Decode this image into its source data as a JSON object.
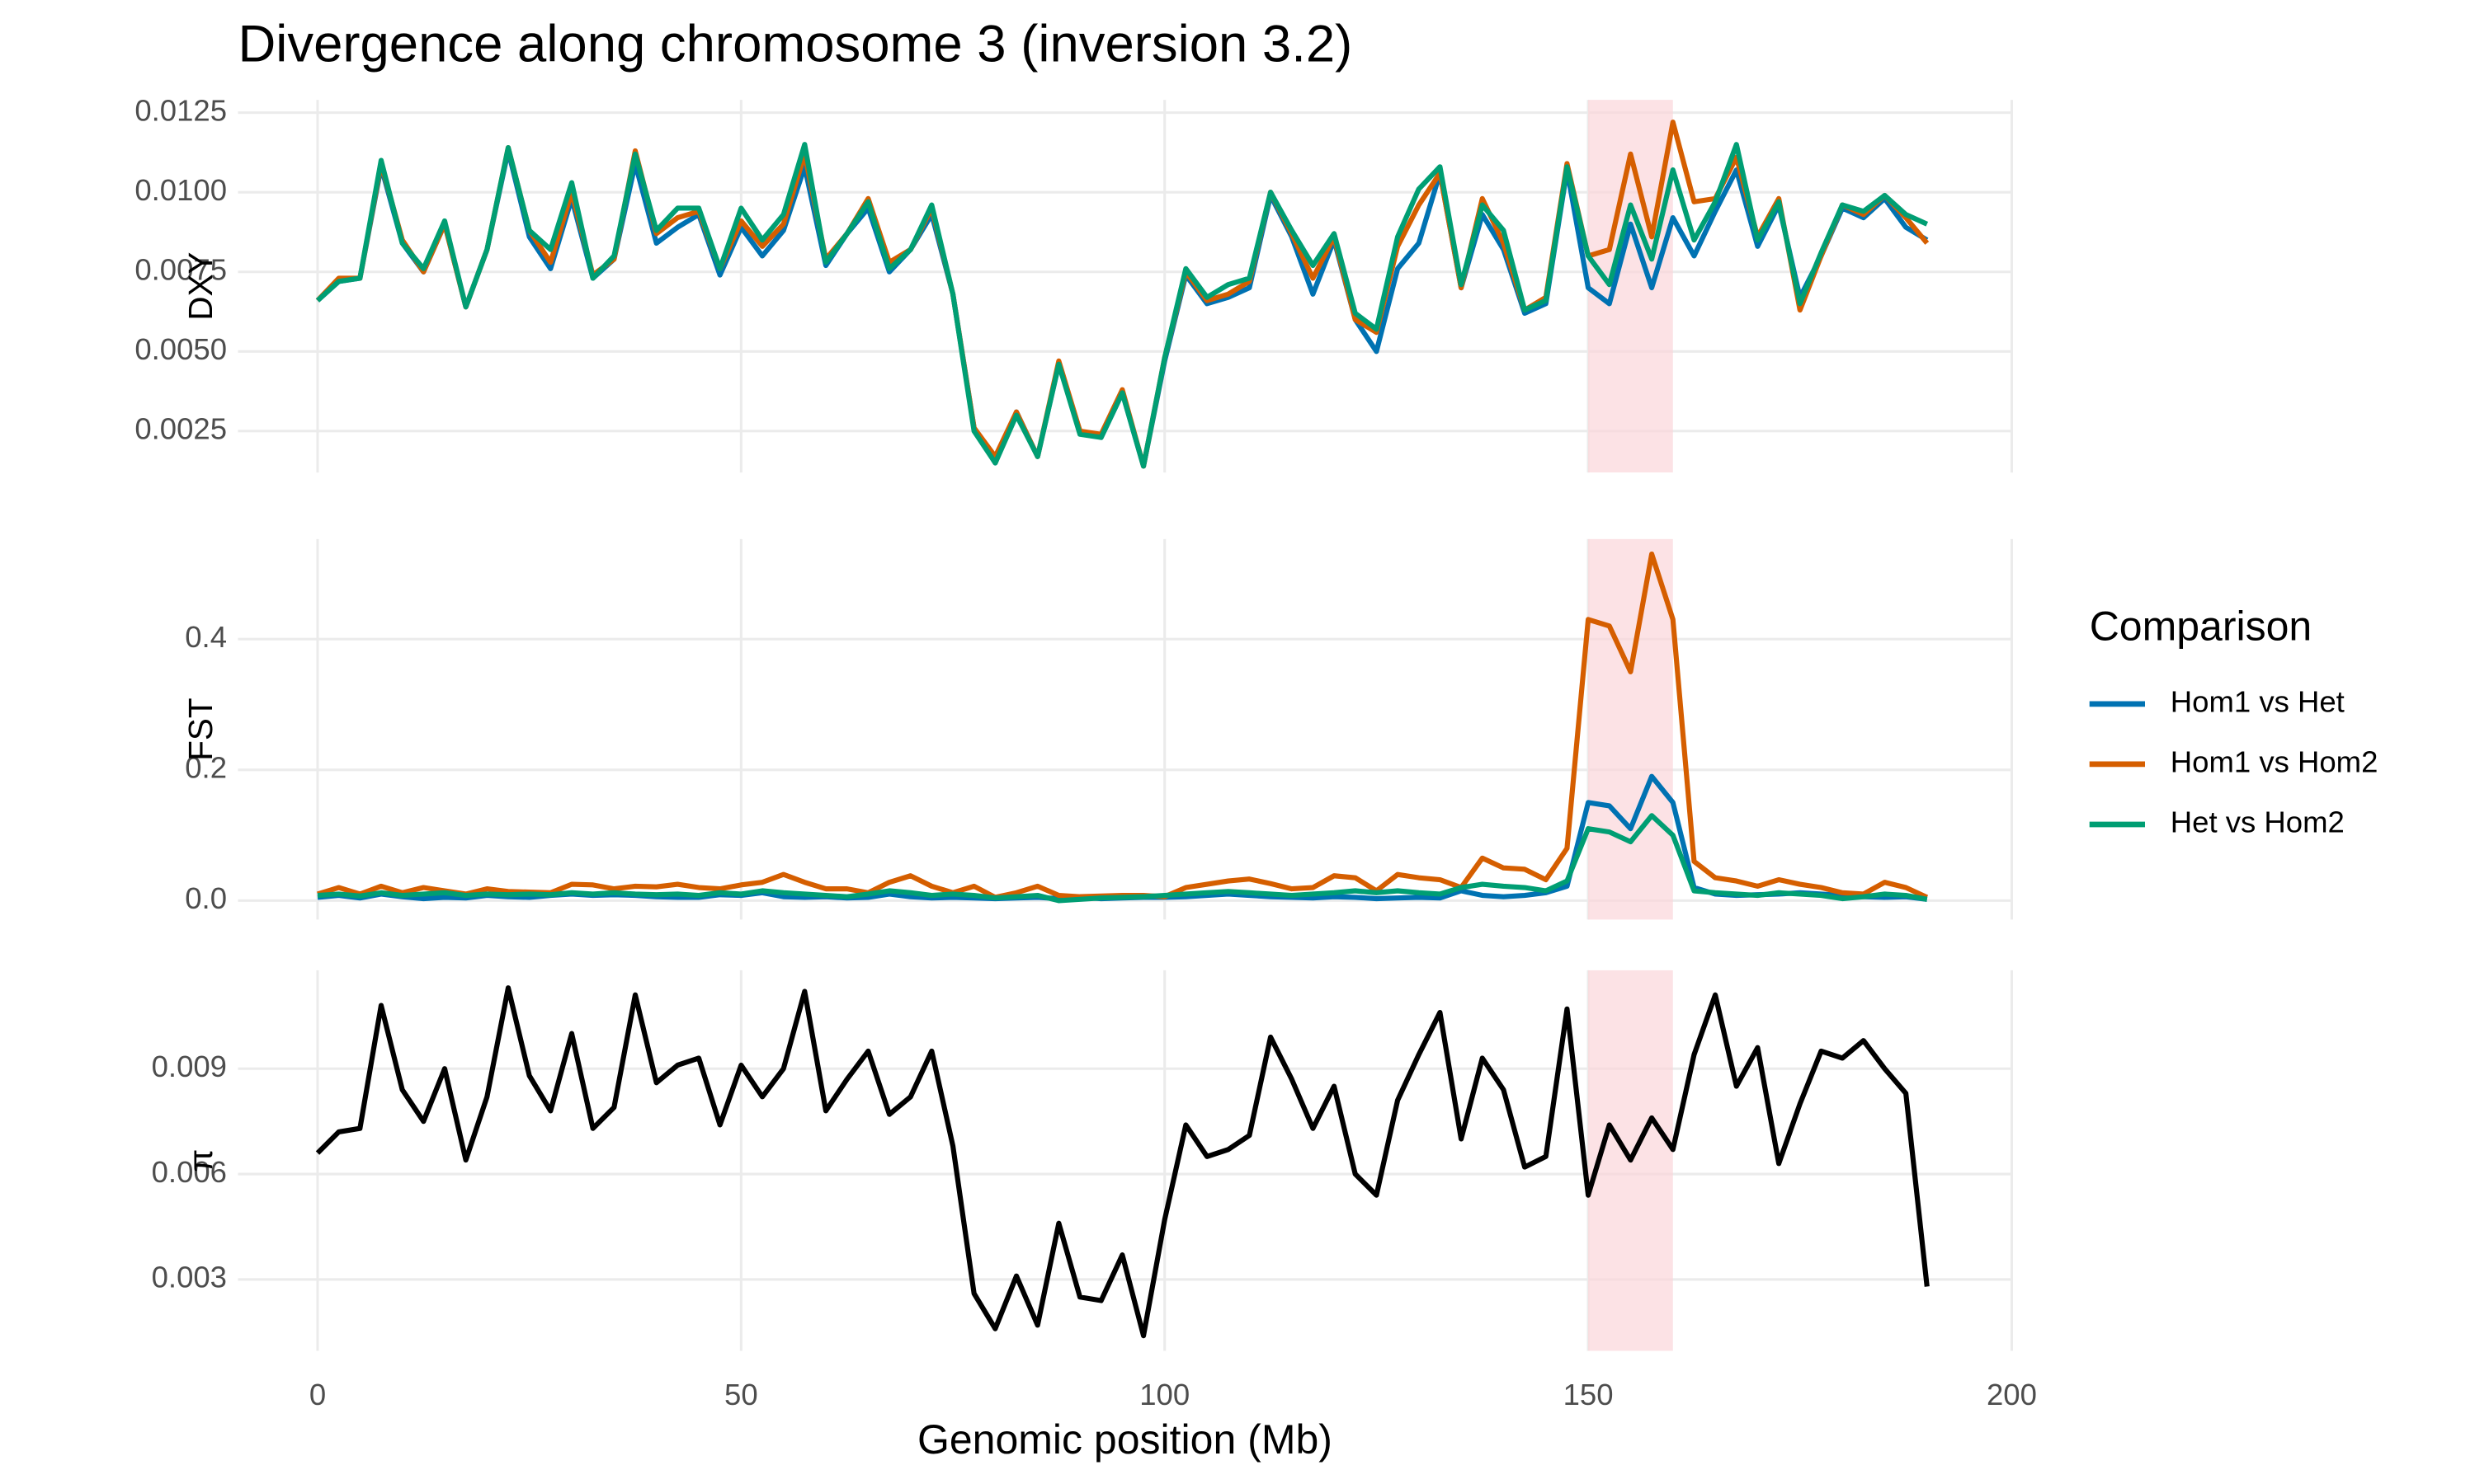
{
  "chart_data": {
    "type": "line",
    "title": "Divergence along chromosome 3 (inversion 3.2)",
    "x_label": "Genomic position (Mb)",
    "xlim": [
      -9.4,
      200
    ],
    "xticks": [
      0,
      50,
      100,
      150,
      200
    ],
    "highlight": [
      150,
      160
    ],
    "highlight_color": "#fbd5da",
    "grid": true,
    "legend_title": "Comparison",
    "legend_position": "right",
    "x": [
      0,
      2.5,
      5,
      7.5,
      10,
      12.5,
      15,
      17.5,
      20,
      22.5,
      25,
      27.5,
      30,
      32.5,
      35,
      37.5,
      40,
      42.5,
      45,
      47.5,
      50,
      52.5,
      55,
      57.5,
      60,
      62.5,
      65,
      67.5,
      70,
      72.5,
      75,
      77.5,
      80,
      82.5,
      85,
      87.5,
      90,
      92.5,
      95,
      97.5,
      100,
      102.5,
      105,
      107.5,
      110,
      112.5,
      115,
      117.5,
      120,
      122.5,
      125,
      127.5,
      130,
      132.5,
      135,
      137.5,
      140,
      142.5,
      145,
      147.5,
      150,
      152.5,
      155,
      157.5,
      160,
      162.5,
      165,
      167.5,
      170,
      172.5,
      175,
      177.5,
      180,
      182.5,
      185,
      187.5,
      190
    ],
    "panels": [
      {
        "y_label": "DXY",
        "ylim": [
          0.0012,
          0.0129
        ],
        "yticks": [
          0.0025,
          {
            "value": 0.005,
            "label": "0.0050"
          },
          0.0075,
          {
            "value": 0.01,
            "label": "0.0100"
          },
          0.0125
        ],
        "series": [
          {
            "name": "Hom1 vs Het",
            "color": "#0072B2",
            "values": [
              0.0066,
              0.0072,
              0.0073,
              0.0108,
              0.0084,
              0.0075,
              0.009,
              0.0064,
              0.0082,
              0.0113,
              0.0086,
              0.0076,
              0.0098,
              0.0073,
              0.0079,
              0.0109,
              0.0084,
              0.0089,
              0.0093,
              0.0074,
              0.0089,
              0.008,
              0.0088,
              0.0108,
              0.0077,
              0.0087,
              0.0095,
              0.0075,
              0.0082,
              0.0093,
              0.0068,
              0.0026,
              0.0015,
              0.0031,
              0.0017,
              0.0046,
              0.0025,
              0.0023,
              0.0037,
              0.0014,
              0.0047,
              0.0074,
              0.0065,
              0.0067,
              0.007,
              0.0099,
              0.0086,
              0.0068,
              0.0085,
              0.006,
              0.005,
              0.0076,
              0.0084,
              0.0106,
              0.007,
              0.0093,
              0.0082,
              0.0062,
              0.0065,
              0.0107,
              0.007,
              0.0065,
              0.009,
              0.007,
              0.0092,
              0.008,
              0.0094,
              0.0107,
              0.0083,
              0.0096,
              0.0067,
              0.008,
              0.0095,
              0.0092,
              0.0098,
              0.0089,
              0.0085
            ]
          },
          {
            "name": "Hom1 vs Hom2",
            "color": "#D55E00",
            "values": [
              0.0066,
              0.0073,
              0.0073,
              0.0109,
              0.0085,
              0.0075,
              0.009,
              0.0064,
              0.0082,
              0.0114,
              0.0088,
              0.0078,
              0.01,
              0.0074,
              0.0079,
              0.0113,
              0.0087,
              0.0092,
              0.0094,
              0.0076,
              0.0091,
              0.0083,
              0.009,
              0.0112,
              0.0079,
              0.0087,
              0.0098,
              0.0078,
              0.0082,
              0.0095,
              0.0068,
              0.0026,
              0.0017,
              0.0031,
              0.0017,
              0.0047,
              0.0025,
              0.0024,
              0.0038,
              0.0014,
              0.0048,
              0.0075,
              0.0066,
              0.0068,
              0.0072,
              0.01,
              0.0087,
              0.0073,
              0.0086,
              0.006,
              0.0056,
              0.0083,
              0.0096,
              0.0106,
              0.007,
              0.0098,
              0.0084,
              0.0063,
              0.0067,
              0.0109,
              0.008,
              0.0082,
              0.0112,
              0.0086,
              0.0122,
              0.0097,
              0.0098,
              0.0111,
              0.0086,
              0.0098,
              0.0063,
              0.008,
              0.0096,
              0.0093,
              0.0099,
              0.0092,
              0.0084
            ]
          },
          {
            "name": "Het vs Hom2",
            "color": "#009E73",
            "values": [
              0.0066,
              0.0072,
              0.0073,
              0.011,
              0.0084,
              0.0076,
              0.0091,
              0.0064,
              0.0082,
              0.0114,
              0.0088,
              0.0082,
              0.0103,
              0.0073,
              0.008,
              0.0112,
              0.0088,
              0.0095,
              0.0095,
              0.0076,
              0.0095,
              0.0085,
              0.0093,
              0.0115,
              0.0078,
              0.0087,
              0.0097,
              0.0076,
              0.0082,
              0.0096,
              0.0068,
              0.0025,
              0.0015,
              0.003,
              0.0017,
              0.0046,
              0.0024,
              0.0023,
              0.0037,
              0.0014,
              0.0048,
              0.0076,
              0.0067,
              0.0071,
              0.0073,
              0.01,
              0.0088,
              0.0077,
              0.0087,
              0.0062,
              0.0057,
              0.0086,
              0.0101,
              0.0108,
              0.0071,
              0.0096,
              0.0088,
              0.0063,
              0.0066,
              0.0108,
              0.008,
              0.0071,
              0.0096,
              0.0079,
              0.0107,
              0.0085,
              0.0097,
              0.0115,
              0.0085,
              0.0097,
              0.0065,
              0.0081,
              0.0096,
              0.0094,
              0.0099,
              0.0093,
              0.009
            ]
          }
        ]
      },
      {
        "y_label": "FST",
        "ylim": [
          -0.029,
          0.553
        ],
        "yticks": [
          {
            "value": 0,
            "label": "0.0"
          },
          0.2,
          0.4
        ],
        "series": [
          {
            "values": [
              0.005,
              0.008,
              0.004,
              0.01,
              0.006,
              0.003,
              0.005,
              0.004,
              0.008,
              0.006,
              0.005,
              0.008,
              0.01,
              0.008,
              0.009,
              0.008,
              0.006,
              0.005,
              0.005,
              0.009,
              0.008,
              0.012,
              0.006,
              0.005,
              0.006,
              0.004,
              0.005,
              0.01,
              0.006,
              0.004,
              0.005,
              0.004,
              0.003,
              0.004,
              0.005,
              0.003,
              0.005,
              0.003,
              0.004,
              0.005,
              0.005,
              0.006,
              0.008,
              0.01,
              0.008,
              0.006,
              0.005,
              0.004,
              0.006,
              0.005,
              0.003,
              0.004,
              0.005,
              0.004,
              0.015,
              0.008,
              0.006,
              0.008,
              0.012,
              0.022,
              0.15,
              0.145,
              0.11,
              0.19,
              0.15,
              0.02,
              0.01,
              0.008,
              0.009,
              0.01,
              0.012,
              0.01,
              0.008,
              0.006,
              0.005,
              0.006,
              0.002
            ]
          },
          {
            "values": [
              0.01,
              0.02,
              0.01,
              0.022,
              0.012,
              0.02,
              0.015,
              0.01,
              0.018,
              0.014,
              0.013,
              0.012,
              0.025,
              0.024,
              0.018,
              0.022,
              0.021,
              0.025,
              0.02,
              0.018,
              0.024,
              0.028,
              0.04,
              0.028,
              0.018,
              0.018,
              0.012,
              0.028,
              0.038,
              0.022,
              0.012,
              0.022,
              0.005,
              0.012,
              0.022,
              0.008,
              0.006,
              0.007,
              0.008,
              0.008,
              0.006,
              0.02,
              0.025,
              0.03,
              0.033,
              0.026,
              0.018,
              0.02,
              0.038,
              0.035,
              0.015,
              0.04,
              0.035,
              0.032,
              0.02,
              0.065,
              0.05,
              0.048,
              0.032,
              0.08,
              0.43,
              0.42,
              0.35,
              0.53,
              0.43,
              0.06,
              0.035,
              0.03,
              0.022,
              0.032,
              0.025,
              0.02,
              0.012,
              0.01,
              0.028,
              0.02,
              0.005
            ]
          },
          {
            "values": [
              0.008,
              0.01,
              0.007,
              0.012,
              0.008,
              0.01,
              0.012,
              0.008,
              0.01,
              0.009,
              0.01,
              0.009,
              0.012,
              0.01,
              0.012,
              0.01,
              0.009,
              0.01,
              0.008,
              0.012,
              0.01,
              0.015,
              0.012,
              0.01,
              0.008,
              0.006,
              0.01,
              0.015,
              0.012,
              0.008,
              0.01,
              0.008,
              0.004,
              0.006,
              0.008,
              0.0,
              0.002,
              0.004,
              0.005,
              0.006,
              0.008,
              0.01,
              0.012,
              0.014,
              0.012,
              0.01,
              0.008,
              0.01,
              0.012,
              0.015,
              0.012,
              0.015,
              0.012,
              0.01,
              0.02,
              0.025,
              0.022,
              0.02,
              0.015,
              0.03,
              0.11,
              0.105,
              0.09,
              0.13,
              0.1,
              0.015,
              0.012,
              0.01,
              0.008,
              0.012,
              0.01,
              0.008,
              0.003,
              0.006,
              0.01,
              0.008,
              0.002
            ]
          }
        ]
      },
      {
        "y_label": "π",
        "ylim": [
          0.00097,
          0.0118
        ],
        "yticks": [
          0.003,
          0.006,
          0.009
        ],
        "color": "#000000",
        "values": [
          0.0066,
          0.0072,
          0.0073,
          0.0108,
          0.0084,
          0.0075,
          0.009,
          0.0064,
          0.0082,
          0.0113,
          0.0088,
          0.0078,
          0.01,
          0.0073,
          0.0079,
          0.0111,
          0.0086,
          0.0091,
          0.0093,
          0.0074,
          0.0091,
          0.0082,
          0.009,
          0.0112,
          0.0078,
          0.0087,
          0.0095,
          0.0077,
          0.0082,
          0.0095,
          0.0068,
          0.0026,
          0.0016,
          0.0031,
          0.0017,
          0.0046,
          0.0025,
          0.0024,
          0.0037,
          0.0014,
          0.0047,
          0.0074,
          0.0065,
          0.0067,
          0.0071,
          0.0099,
          0.0087,
          0.0073,
          0.0085,
          0.006,
          0.0054,
          0.0081,
          0.0094,
          0.0106,
          0.007,
          0.0093,
          0.0084,
          0.0062,
          0.0065,
          0.0107,
          0.0054,
          0.0074,
          0.0064,
          0.0076,
          0.0067,
          0.0094,
          0.0111,
          0.0085,
          0.0096,
          0.0063,
          0.008,
          0.0095,
          0.0093,
          0.0098,
          0.009,
          0.0083,
          0.0028
        ]
      }
    ]
  }
}
